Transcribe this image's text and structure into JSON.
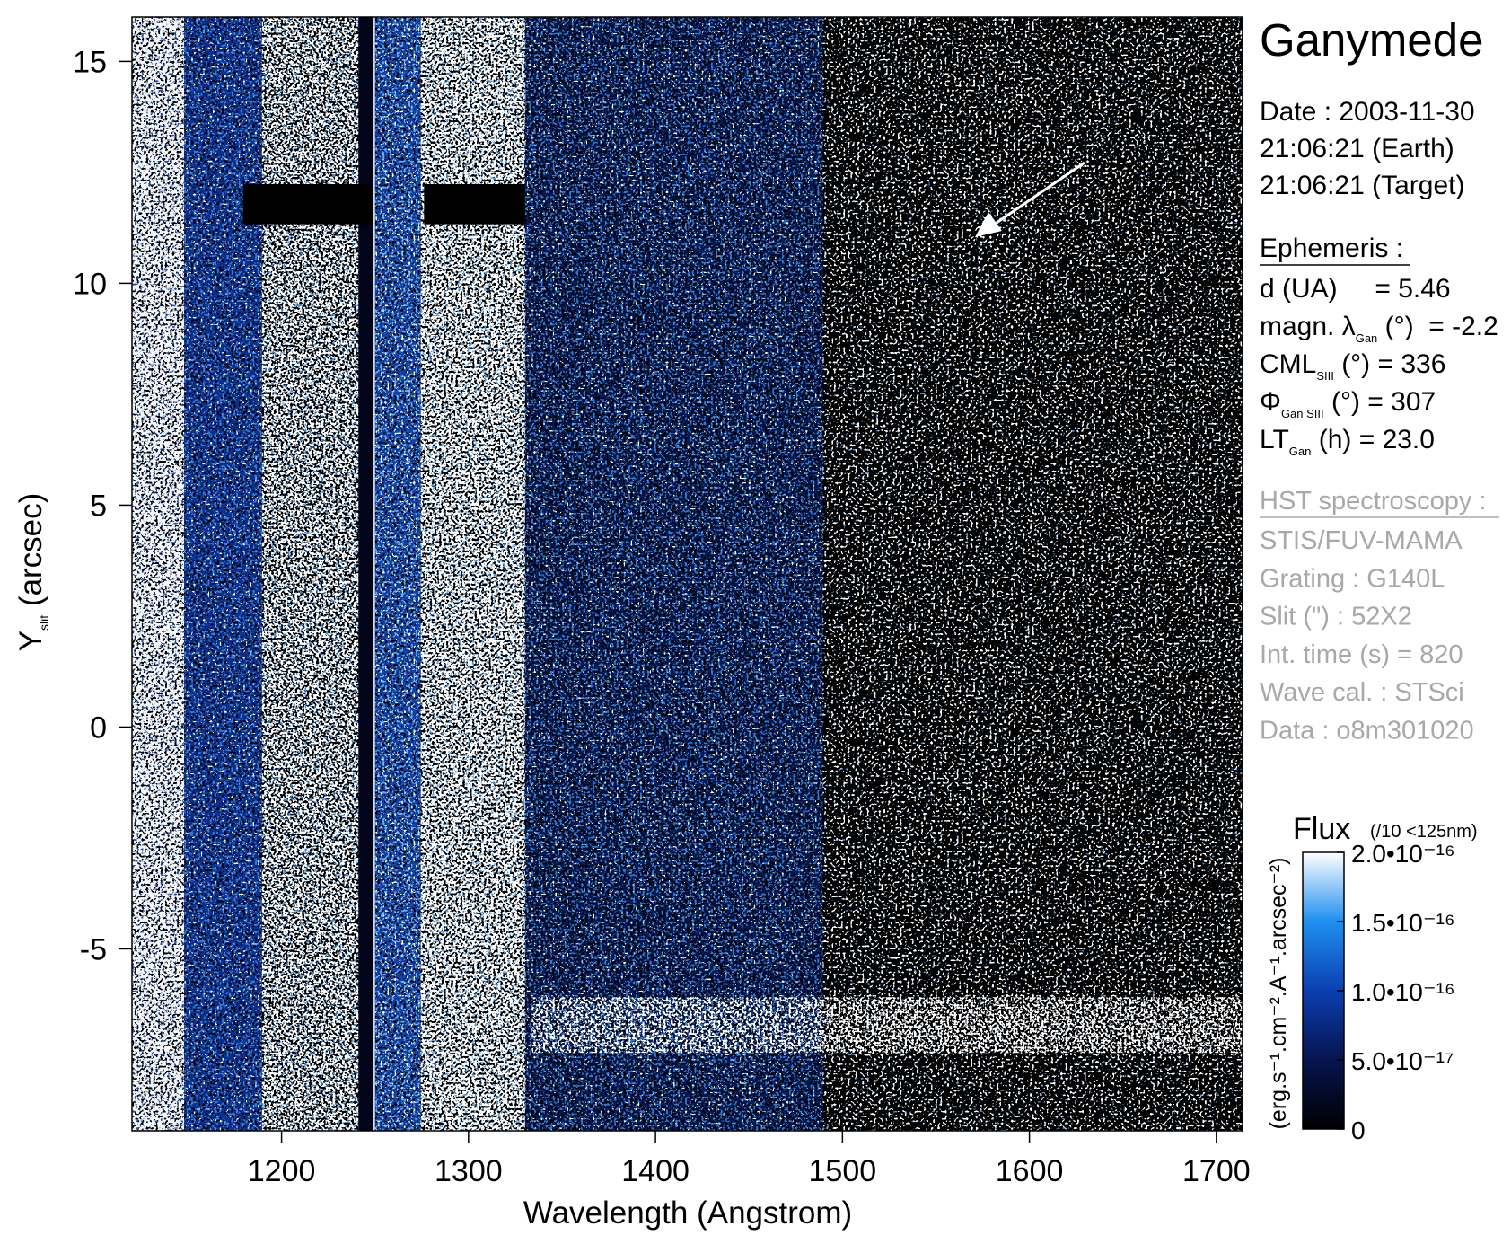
{
  "chart_data": {
    "type": "spectrogram",
    "xlabel": "Wavelength (Angstrom)",
    "ylabel": {
      "text": "Y",
      "sub": "slit",
      "rest": " (arcsec)"
    },
    "xlim": [
      1120,
      1714
    ],
    "xticks": [
      1200,
      1300,
      1400,
      1500,
      1600,
      1700
    ],
    "ylim": [
      -9.1,
      16
    ],
    "yticks": [
      -5,
      0,
      5,
      10,
      15
    ],
    "colorbar": {
      "title": "Flux",
      "note": "(/10 <125nm)",
      "label": "(erg.s⁻¹.cm⁻².A⁻¹.arcsec⁻²)",
      "lim": [
        0,
        2e-16
      ],
      "ticks": [
        0,
        {
          "value": 5e-17,
          "label": "5.0•10⁻¹⁷"
        },
        {
          "value": 1e-16,
          "label": "1.0•10⁻¹⁶"
        },
        {
          "value": 1.5e-16,
          "label": "1.5•10⁻¹⁶"
        },
        {
          "value": 2e-16,
          "label": "2.0•10⁻¹⁶"
        }
      ],
      "colors": [
        "#000000",
        "#06144f",
        "#0b3fb0",
        "#1e90f0",
        "#ffffff"
      ]
    }
  },
  "panel": {
    "title": "Ganymede",
    "date_lines": [
      "Date : 2003-11-30",
      "21:06:21 (Earth)",
      "21:06:21 (Target)"
    ],
    "ephemeris": {
      "heading": "Ephemeris :",
      "lines": [
        [
          {
            "text": "d (UA)     = 5.46"
          }
        ],
        [
          {
            "text": "magn. λ"
          },
          {
            "sub": "Gan"
          },
          {
            "text": " (°)  = -2.2"
          }
        ],
        [
          {
            "text": "CML"
          },
          {
            "sub": "SIII"
          },
          {
            "text": " (°) = 336"
          }
        ],
        [
          {
            "text": "Φ"
          },
          {
            "sub": "Gan SIII"
          },
          {
            "text": " (°) = 307"
          }
        ],
        [
          {
            "text": "LT"
          },
          {
            "sub": "Gan"
          },
          {
            "text": " (h) = 23.0"
          }
        ]
      ]
    },
    "instrument": {
      "heading": "HST spectroscopy :",
      "lines": [
        "STIS/FUV-MAMA",
        "Grating : G140L",
        "Slit (\") : 52X2",
        "Int. time (s) = 820",
        "Wave cal. : STSci",
        "Data : o8m301020"
      ]
    }
  }
}
